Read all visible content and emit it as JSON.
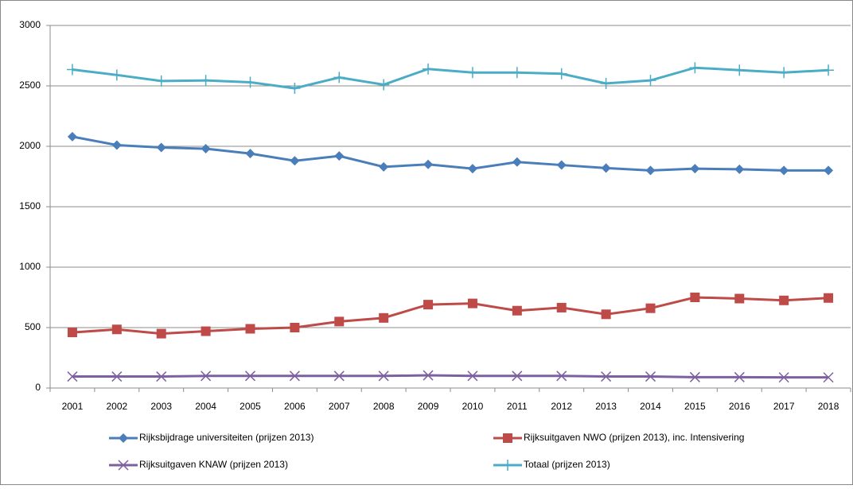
{
  "chart_data": {
    "type": "line",
    "categories": [
      "2001",
      "2002",
      "2003",
      "2004",
      "2005",
      "2006",
      "2007",
      "2008",
      "2009",
      "2010",
      "2011",
      "2012",
      "2013",
      "2014",
      "2015",
      "2016",
      "2017",
      "2018"
    ],
    "ylim": [
      0,
      3000
    ],
    "yticks": [
      0,
      500,
      1000,
      1500,
      2000,
      2500,
      3000
    ],
    "grid": true,
    "series": [
      {
        "name": "Rijksbijdrage universiteiten (prijzen 2013)",
        "color": "#4a7ebb",
        "marker": "diamond",
        "values": [
          2080,
          2010,
          1990,
          1980,
          1940,
          1880,
          1920,
          1830,
          1850,
          1815,
          1870,
          1845,
          1820,
          1800,
          1815,
          1810,
          1800,
          1800
        ]
      },
      {
        "name": "Rijksuitgaven NWO (prijzen 2013), inc. Intensivering",
        "color": "#be4b48",
        "marker": "square",
        "values": [
          460,
          485,
          450,
          470,
          490,
          500,
          550,
          580,
          690,
          700,
          640,
          665,
          610,
          660,
          750,
          740,
          725,
          745
        ]
      },
      {
        "name": "Rijksuitgaven KNAW (prijzen 2013)",
        "color": "#7d60a0",
        "marker": "x",
        "values": [
          95,
          95,
          95,
          100,
          100,
          100,
          100,
          100,
          105,
          100,
          100,
          100,
          95,
          95,
          90,
          90,
          88,
          88
        ]
      },
      {
        "name": "Totaal (prijzen 2013)",
        "color": "#4bacc6",
        "marker": "plus",
        "values": [
          2635,
          2590,
          2540,
          2545,
          2530,
          2480,
          2570,
          2510,
          2640,
          2610,
          2610,
          2600,
          2520,
          2545,
          2650,
          2630,
          2610,
          2630
        ]
      }
    ]
  }
}
